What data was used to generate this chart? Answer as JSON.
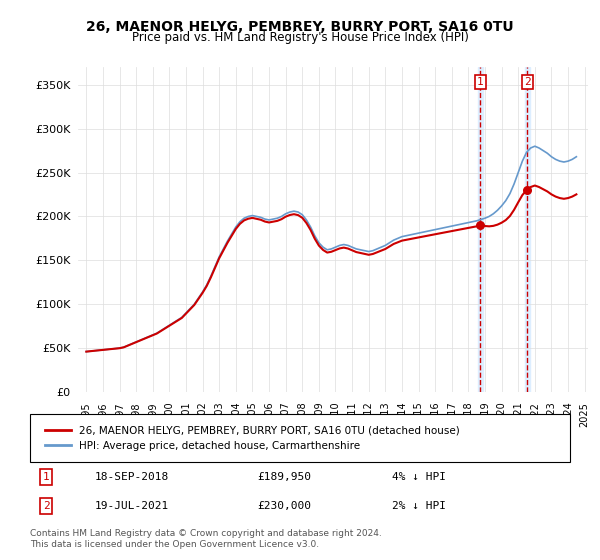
{
  "title": "26, MAENOR HELYG, PEMBREY, BURRY PORT, SA16 0TU",
  "subtitle": "Price paid vs. HM Land Registry's House Price Index (HPI)",
  "legend_line1": "26, MAENOR HELYG, PEMBREY, BURRY PORT, SA16 0TU (detached house)",
  "legend_line2": "HPI: Average price, detached house, Carmarthenshire",
  "annotation1": {
    "label": "1",
    "date": "18-SEP-2018",
    "price": "£189,950",
    "change": "4% ↓ HPI"
  },
  "annotation2": {
    "label": "2",
    "date": "19-JUL-2021",
    "price": "£230,000",
    "change": "2% ↓ HPI"
  },
  "footer": "Contains HM Land Registry data © Crown copyright and database right 2024.\nThis data is licensed under the Open Government Licence v3.0.",
  "line_color_red": "#cc0000",
  "line_color_blue": "#6699cc",
  "shaded_color": "#ddeeff",
  "annotation_color": "#cc0000",
  "ylim": [
    0,
    370000
  ],
  "yticks": [
    0,
    50000,
    100000,
    150000,
    200000,
    250000,
    300000,
    350000
  ],
  "ytick_labels": [
    "£0",
    "£50K",
    "£100K",
    "£150K",
    "£200K",
    "£250K",
    "£300K",
    "£350K"
  ],
  "marker1_x": 2018.72,
  "marker1_y": 189950,
  "marker2_x": 2021.54,
  "marker2_y": 230000,
  "hpi_years": [
    1995,
    1995.25,
    1995.5,
    1995.75,
    1996,
    1996.25,
    1996.5,
    1996.75,
    1997,
    1997.25,
    1997.5,
    1997.75,
    1998,
    1998.25,
    1998.5,
    1998.75,
    1999,
    1999.25,
    1999.5,
    1999.75,
    2000,
    2000.25,
    2000.5,
    2000.75,
    2001,
    2001.25,
    2001.5,
    2001.75,
    2002,
    2002.25,
    2002.5,
    2002.75,
    2003,
    2003.25,
    2003.5,
    2003.75,
    2004,
    2004.25,
    2004.5,
    2004.75,
    2005,
    2005.25,
    2005.5,
    2005.75,
    2006,
    2006.25,
    2006.5,
    2006.75,
    2007,
    2007.25,
    2007.5,
    2007.75,
    2008,
    2008.25,
    2008.5,
    2008.75,
    2009,
    2009.25,
    2009.5,
    2009.75,
    2010,
    2010.25,
    2010.5,
    2010.75,
    2011,
    2011.25,
    2011.5,
    2011.75,
    2012,
    2012.25,
    2012.5,
    2012.75,
    2013,
    2013.25,
    2013.5,
    2013.75,
    2014,
    2014.25,
    2014.5,
    2014.75,
    2015,
    2015.25,
    2015.5,
    2015.75,
    2016,
    2016.25,
    2016.5,
    2016.75,
    2017,
    2017.25,
    2017.5,
    2017.75,
    2018,
    2018.25,
    2018.5,
    2018.75,
    2019,
    2019.25,
    2019.5,
    2019.75,
    2020,
    2020.25,
    2020.5,
    2020.75,
    2021,
    2021.25,
    2021.5,
    2021.75,
    2022,
    2022.25,
    2022.5,
    2022.75,
    2023,
    2023.25,
    2023.5,
    2023.75,
    2024,
    2024.25,
    2024.5
  ],
  "hpi_values": [
    46000,
    46500,
    47000,
    47500,
    48000,
    48500,
    49000,
    49500,
    50000,
    51000,
    53000,
    55000,
    57000,
    59000,
    61000,
    63000,
    65000,
    67000,
    70000,
    73000,
    76000,
    79000,
    82000,
    85000,
    90000,
    95000,
    100000,
    107000,
    114000,
    122000,
    132000,
    143000,
    154000,
    163000,
    172000,
    180000,
    188000,
    194000,
    198000,
    200000,
    201000,
    200000,
    199000,
    197000,
    196000,
    197000,
    198000,
    200000,
    203000,
    205000,
    206000,
    205000,
    202000,
    196000,
    188000,
    178000,
    170000,
    165000,
    162000,
    163000,
    165000,
    167000,
    168000,
    167000,
    165000,
    163000,
    162000,
    161000,
    160000,
    161000,
    163000,
    165000,
    167000,
    170000,
    173000,
    175000,
    177000,
    178000,
    179000,
    180000,
    181000,
    182000,
    183000,
    184000,
    185000,
    186000,
    187000,
    188000,
    189000,
    190000,
    191000,
    192000,
    193000,
    194000,
    195000,
    196500,
    198000,
    200000,
    203000,
    207000,
    212000,
    218000,
    226000,
    237000,
    250000,
    263000,
    273000,
    278000,
    280000,
    278000,
    275000,
    272000,
    268000,
    265000,
    263000,
    262000,
    263000,
    265000,
    268000
  ],
  "sale_years": [
    1995.5,
    2018.72,
    2021.54
  ],
  "sale_values": [
    47000,
    189950,
    230000
  ],
  "xlim_left": 1994.5,
  "xlim_right": 2025.2,
  "xticks": [
    1995,
    1996,
    1997,
    1998,
    1999,
    2000,
    2001,
    2002,
    2003,
    2004,
    2005,
    2006,
    2007,
    2008,
    2009,
    2010,
    2011,
    2012,
    2013,
    2014,
    2015,
    2016,
    2017,
    2018,
    2019,
    2020,
    2021,
    2022,
    2023,
    2024,
    2025
  ]
}
